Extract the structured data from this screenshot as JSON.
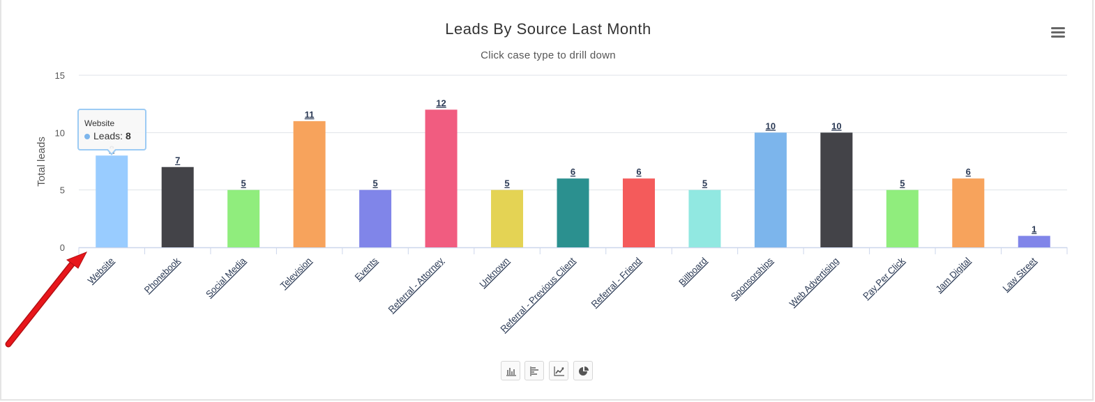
{
  "chart_data": {
    "type": "bar",
    "title": "Leads By Source Last Month",
    "subtitle": "Click case type to drill down",
    "xlabel": "",
    "ylabel": "Total leads",
    "ylim": [
      0,
      15
    ],
    "yticks": [
      0,
      5,
      10,
      15
    ],
    "grid": true,
    "legend": "none",
    "categories": [
      "Website",
      "Phonebook",
      "Social Media",
      "Television",
      "Events",
      "Referral - Attorney",
      "Unknown",
      "Referral - Previous Client",
      "Referral - Friend",
      "Billboard",
      "Sponsorships",
      "Web Advertising",
      "Pay Per Click",
      "Jam Digital",
      "Law Street"
    ],
    "values": [
      8,
      7,
      5,
      11,
      5,
      12,
      5,
      6,
      6,
      5,
      10,
      10,
      5,
      6,
      1
    ],
    "colors": [
      "#99ccff",
      "#434348",
      "#90ed7d",
      "#f7a35c",
      "#8085e9",
      "#f15c80",
      "#e4d354",
      "#2b908f",
      "#f45b5b",
      "#91e8e1",
      "#7cb5ec",
      "#434348",
      "#90ed7d",
      "#f7a35c",
      "#8085e9"
    ],
    "series_name": "Leads"
  },
  "tooltip": {
    "category": "Website",
    "series": "Leads",
    "value_text": "8",
    "dot_color": "#7cb5ec"
  },
  "menu": {
    "icon": "hamburger-menu-icon"
  },
  "toolbar": {
    "buttons": [
      {
        "name": "column-chart-icon"
      },
      {
        "name": "bar-chart-icon"
      },
      {
        "name": "line-chart-icon"
      },
      {
        "name": "pie-chart-icon"
      }
    ]
  },
  "annotation": {
    "arrow_color": "#e8161b"
  }
}
